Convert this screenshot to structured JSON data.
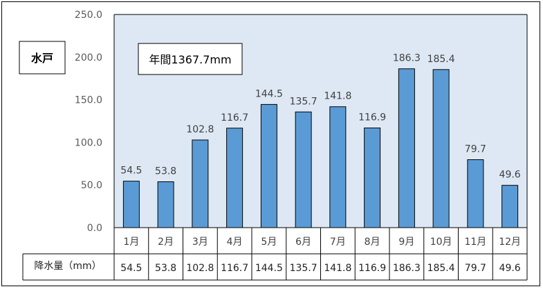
{
  "station_label": "水戸",
  "annual_label": "年間1367.7mm",
  "table_header": "降水量（mm）",
  "colors": {
    "bar": "#5b9bd5",
    "bar_edge": "#000000",
    "plot_bg": "#dde8f4"
  },
  "chart_data": {
    "type": "bar",
    "categories": [
      "1月",
      "2月",
      "3月",
      "4月",
      "5月",
      "6月",
      "7月",
      "8月",
      "9月",
      "10月",
      "11月",
      "12月"
    ],
    "values": [
      54.5,
      53.8,
      102.8,
      116.7,
      144.5,
      135.7,
      141.8,
      116.9,
      186.3,
      185.4,
      79.7,
      49.6
    ],
    "value_labels": [
      "54.5",
      "53.8",
      "102.8",
      "116.7",
      "144.5",
      "135.7",
      "141.8",
      "116.9",
      "186.3",
      "185.4",
      "79.7",
      "49.6"
    ],
    "ylim": [
      0,
      250
    ],
    "yticks": [
      "0.0",
      "50.0",
      "100.0",
      "150.0",
      "200.0",
      "250.0"
    ],
    "title": "",
    "xlabel": "",
    "ylabel": "",
    "grid": false
  }
}
